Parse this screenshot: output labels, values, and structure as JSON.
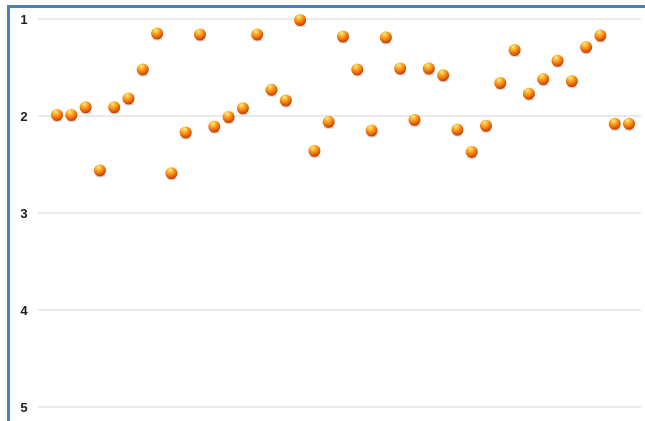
{
  "chart_data": {
    "type": "scatter",
    "title": "",
    "xlabel": "",
    "ylabel": "",
    "y_axis_reversed": true,
    "ylim": [
      1,
      5
    ],
    "y_ticks": [
      1,
      2,
      3,
      4,
      5
    ],
    "y_tick_labels": [
      "1",
      "2",
      "3",
      "4",
      "5"
    ],
    "x_axis_visible": false,
    "grid": "horizontal",
    "legend": "none",
    "marker_colors": {
      "highlight": "#ffef7a",
      "body": "#ff9a1a",
      "shade": "#c83a00"
    },
    "gridline_color": "#d4d4d4",
    "frame_color": "#4a7fc0",
    "x": [
      1,
      2,
      3,
      4,
      5,
      6,
      7,
      8,
      9,
      10,
      11,
      12,
      13,
      14,
      15,
      16,
      17,
      18,
      19,
      20,
      21,
      22,
      23,
      24,
      25,
      26,
      27,
      28,
      29,
      30,
      31,
      32,
      33,
      34,
      35,
      36,
      37,
      38,
      39,
      40,
      41
    ],
    "y": [
      1.99,
      1.99,
      1.91,
      2.56,
      1.91,
      1.82,
      1.52,
      1.15,
      2.59,
      2.17,
      1.16,
      2.11,
      2.01,
      1.92,
      1.16,
      1.73,
      1.84,
      1.01,
      2.36,
      2.06,
      1.18,
      1.52,
      2.15,
      1.19,
      1.51,
      2.04,
      1.51,
      1.58,
      2.14,
      2.37,
      2.1,
      1.66,
      1.32,
      1.77,
      1.62,
      1.43,
      1.64,
      1.29,
      1.17,
      2.08,
      2.08
    ]
  }
}
